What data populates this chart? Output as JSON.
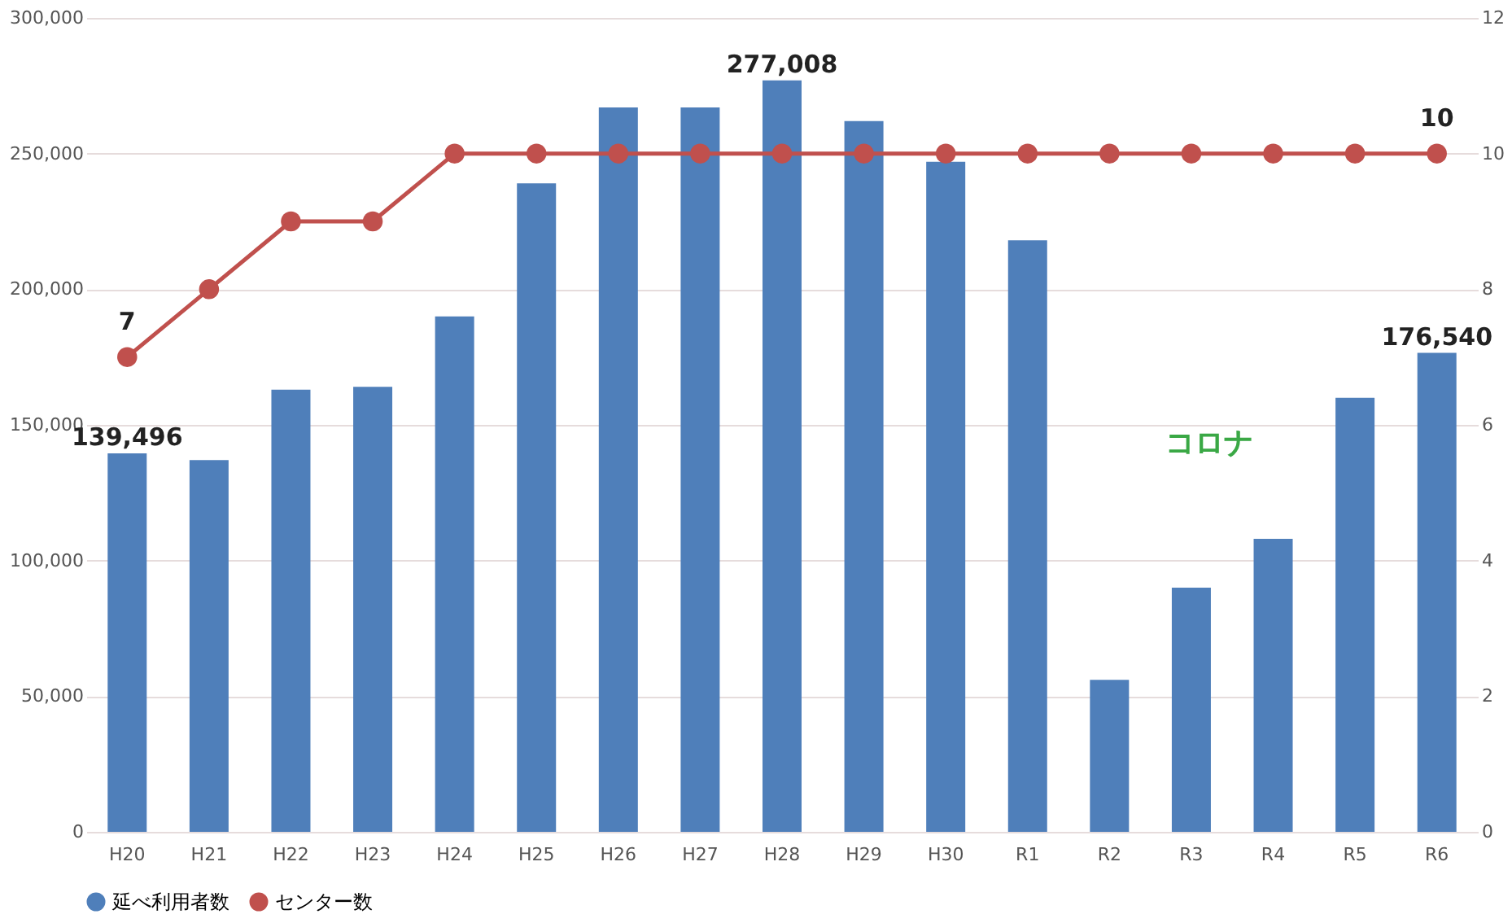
{
  "chart_data": {
    "type": "bar",
    "categories": [
      "H20",
      "H21",
      "H22",
      "H23",
      "H24",
      "H25",
      "H26",
      "H27",
      "H28",
      "H29",
      "H30",
      "R1",
      "R2",
      "R3",
      "R4",
      "R5",
      "R6"
    ],
    "series": [
      {
        "name": "延べ利用者数",
        "color": "#4f7fba",
        "values": [
          139496,
          137000,
          163000,
          164000,
          190000,
          239000,
          267000,
          267000,
          277008,
          262000,
          247000,
          218000,
          56000,
          90000,
          108000,
          160000,
          176540
        ],
        "value_labels": [
          "139,496",
          null,
          null,
          null,
          null,
          null,
          null,
          null,
          "277,008",
          null,
          null,
          null,
          null,
          null,
          null,
          null,
          "176,540"
        ]
      },
      {
        "name": "センター数",
        "type": "line",
        "axis": "y2",
        "color": "#c0504d",
        "marker": "circle",
        "values": [
          7,
          8,
          9,
          9,
          10,
          10,
          10,
          10,
          10,
          10,
          10,
          10,
          10,
          10,
          10,
          10,
          10
        ],
        "value_labels": [
          "7",
          null,
          null,
          null,
          null,
          null,
          null,
          null,
          null,
          null,
          null,
          null,
          null,
          null,
          null,
          null,
          "10"
        ]
      }
    ],
    "ylim": [
      0,
      300000
    ],
    "yticks": [
      0,
      {
        "value": 50000,
        "label": "50,000"
      },
      {
        "value": 100000,
        "label": "100,000"
      },
      {
        "value": 150000,
        "label": "150,000"
      },
      {
        "value": 200000,
        "label": "200,000"
      },
      {
        "value": 250000,
        "label": "250,000"
      },
      {
        "value": 300000,
        "label": "300,000"
      }
    ],
    "y2lim": [
      0,
      12
    ],
    "y2ticks": [
      0,
      2,
      4,
      6,
      8,
      10,
      12
    ],
    "grid": "y",
    "legend": "bottom",
    "annotations": [
      "コロナ"
    ]
  }
}
